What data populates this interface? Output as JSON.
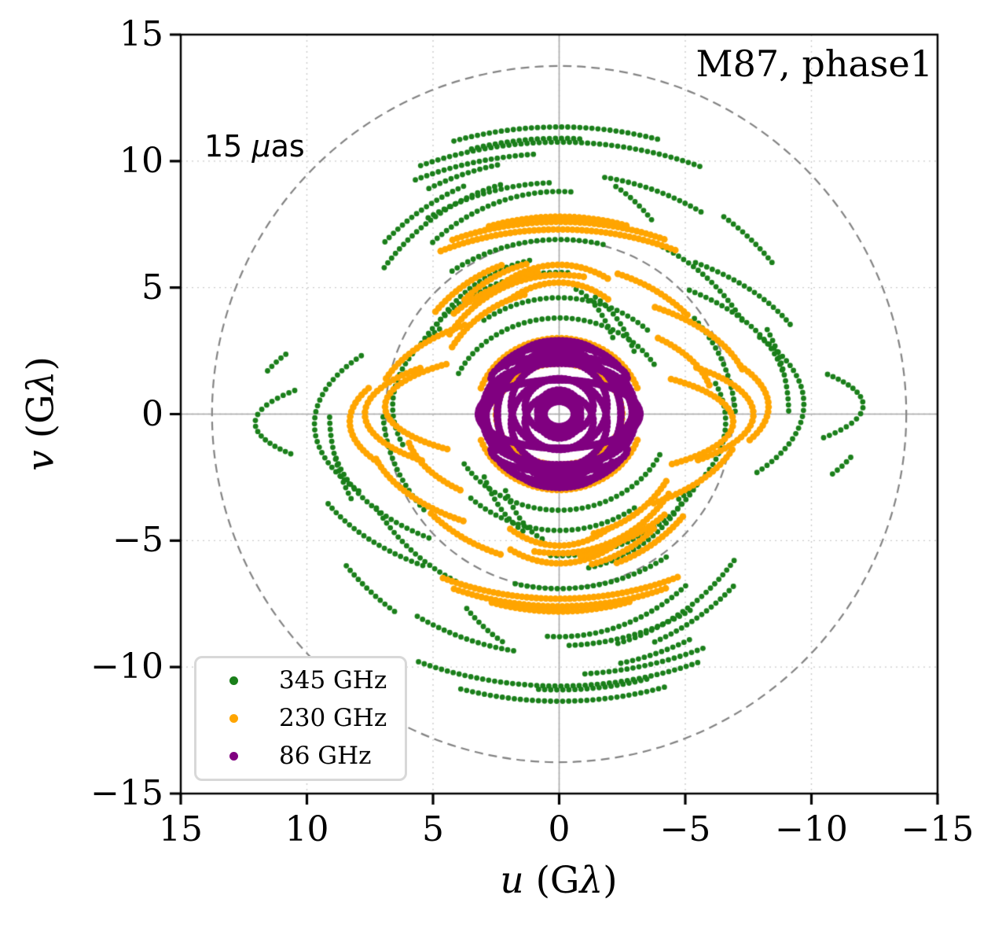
{
  "figure": {
    "title": "M87, phase1",
    "annotation": {
      "prefix": "15 ",
      "mu": "μ",
      "suffix": "as"
    },
    "xlabel": {
      "var": "u",
      "open": " (G",
      "lambda": "λ",
      "close": ")"
    },
    "ylabel": {
      "var": "v",
      "open": " (G",
      "lambda": "λ",
      "close": ")"
    }
  },
  "legend": {
    "position": "lower left",
    "items": [
      {
        "label": "345 GHz",
        "color": "#1a7f1a"
      },
      {
        "label": "230 GHz",
        "color": "#ffa500"
      },
      {
        "label": "86 GHz",
        "color": "#800080"
      }
    ]
  },
  "chart_data": {
    "type": "scatter",
    "title": "M87, phase1",
    "xlabel": "u (Gλ)",
    "ylabel": "v (Gλ)",
    "xlim": [
      15,
      -15
    ],
    "ylim": [
      -15,
      15
    ],
    "x_axis_inverted": true,
    "xticks": {
      "values": [
        15,
        10,
        5,
        0,
        -5,
        -10,
        -15
      ],
      "labels": [
        "15",
        "10",
        "5",
        "0",
        "−5",
        "−10",
        "−15"
      ]
    },
    "yticks": {
      "values": [
        15,
        10,
        5,
        0,
        -5,
        -10,
        -15
      ],
      "labels": [
        "15",
        "10",
        "5",
        "0",
        "−5",
        "−10",
        "−15"
      ]
    },
    "grid": {
      "dotted_line_values": [
        -10,
        -5,
        0,
        5,
        10
      ],
      "dotted_color": "#cbcbcb",
      "zero_lines": true,
      "zero_line_color": "#a9a9a9"
    },
    "reference_circles": {
      "label": "15 μas",
      "dashed": true,
      "color": "#838383",
      "radii_glambda": [
        13.76,
        6.88
      ]
    },
    "legend_position": "lower left",
    "track_format": "Each track [A,B,C,t1,t2] approximates a uv baseline arc: u=A·cos(t), v=B·sin(t)+C in Gλ for t in [t1,t2] degrees; the conjugate point (−u,−v) is also plotted.",
    "series": [
      {
        "name": "345 GHz",
        "frequency_ghz": 345,
        "color": "#1a7f1a",
        "marker_px": 3.4,
        "dot_spacing": 0.24,
        "tracks": [
          [
            13.5,
            11.35,
            0,
            72,
            107
          ],
          [
            13.5,
            10.75,
            0,
            66,
            115
          ],
          [
            13.0,
            10.3,
            0,
            64,
            86
          ],
          [
            11.0,
            10.1,
            0,
            62,
            78
          ],
          [
            10.4,
            9.5,
            0,
            100,
            123
          ],
          [
            12.6,
            10.9,
            0,
            74,
            94
          ],
          [
            9.8,
            9.15,
            0,
            58,
            88
          ],
          [
            8.8,
            9.4,
            0,
            38,
            75
          ],
          [
            9.6,
            9.8,
            0,
            44,
            67
          ],
          [
            7.8,
            8.6,
            0.2,
            50,
            95
          ],
          [
            8.3,
            7.6,
            0,
            118,
            152
          ],
          [
            7.0,
            6.5,
            -0.4,
            140,
            176
          ],
          [
            9.7,
            4.6,
            -0.4,
            -35,
            38
          ],
          [
            9.0,
            5.0,
            -0.8,
            -55,
            -10
          ],
          [
            10.2,
            6.0,
            -0.9,
            -58,
            -25
          ],
          [
            6.3,
            5.6,
            0,
            30,
            95
          ],
          [
            6.6,
            4.4,
            0.3,
            -20,
            45
          ],
          [
            5.2,
            4.9,
            -0.3,
            55,
            135
          ],
          [
            4.4,
            3.8,
            0,
            25,
            150
          ],
          [
            7.4,
            6.9,
            0,
            55,
            105
          ],
          [
            5.9,
            6.2,
            0,
            35,
            80
          ],
          [
            12.05,
            2.6,
            -0.35,
            -28,
            30
          ],
          [
            12.3,
            5.0,
            0,
            20,
            30
          ],
          [
            3.4,
            5.1,
            0,
            115,
            152
          ],
          [
            2.6,
            4.9,
            0.2,
            105,
            145
          ],
          [
            6.0,
            9.7,
            0,
            -68,
            -52
          ],
          [
            9.1,
            7.9,
            0,
            155,
            180
          ],
          [
            10.6,
            9.9,
            0,
            128,
            143
          ]
        ]
      },
      {
        "name": "230 GHz",
        "frequency_ghz": 230,
        "color": "#ffa500",
        "marker_px": 4.3,
        "dot_spacing": 0.19,
        "tracks": [
          [
            10.0,
            7.6,
            0,
            65,
            115
          ],
          [
            10.0,
            7.3,
            0,
            62,
            118
          ],
          [
            9.0,
            7.8,
            0,
            72,
            108
          ],
          [
            5.3,
            5.5,
            0,
            35,
            85
          ],
          [
            5.9,
            5.2,
            0.3,
            45,
            100
          ],
          [
            4.6,
            5.9,
            0,
            55,
            115
          ],
          [
            4.9,
            4.5,
            0.4,
            30,
            75
          ],
          [
            3.9,
            5.0,
            0.2,
            60,
            120
          ],
          [
            5.6,
            6.1,
            0,
            48,
            78
          ],
          [
            7.7,
            2.6,
            0,
            -45,
            45
          ],
          [
            8.3,
            3.2,
            -0.3,
            -30,
            25
          ],
          [
            6.9,
            2.2,
            0.3,
            -50,
            50
          ],
          [
            7.3,
            4.1,
            0,
            20,
            60
          ],
          [
            7.6,
            4.3,
            -0.5,
            -60,
            -15
          ],
          [
            6.4,
            6.3,
            0,
            40,
            70
          ],
          [
            6.8,
            5.9,
            0,
            110,
            140
          ],
          [
            3.3,
            3.0,
            0,
            20,
            160
          ],
          [
            2.5,
            2.0,
            0,
            0,
            180
          ],
          [
            6.1,
            3.4,
            0.4,
            130,
            170
          ],
          [
            5.0,
            5.4,
            -0.3,
            228,
            262
          ]
        ]
      },
      {
        "name": "86 GHz",
        "frequency_ghz": 86,
        "color": "#800080",
        "marker_px": 4.8,
        "dot_spacing": 0.15,
        "tracks": [
          [
            3.15,
            2.85,
            0,
            40,
            140
          ],
          [
            3.2,
            1.35,
            0,
            0,
            360
          ],
          [
            2.9,
            2.1,
            0,
            0,
            360
          ],
          [
            2.45,
            2.45,
            0,
            0,
            360
          ],
          [
            1.9,
            1.75,
            0.35,
            0,
            360
          ],
          [
            1.35,
            1.1,
            -0.3,
            0,
            360
          ],
          [
            0.85,
            0.8,
            0.15,
            0,
            360
          ],
          [
            2.6,
            1.0,
            1.0,
            0,
            180
          ],
          [
            2.7,
            0.9,
            -1.4,
            180,
            360
          ],
          [
            2.1,
            0.8,
            1.9,
            0,
            180
          ],
          [
            1.5,
            0.6,
            -2.3,
            180,
            360
          ],
          [
            0.6,
            0.5,
            0,
            0,
            360
          ],
          [
            2.95,
            1.9,
            0.3,
            150,
            210
          ],
          [
            3.05,
            2.5,
            0,
            -35,
            35
          ],
          [
            2.2,
            2.6,
            0,
            60,
            120
          ],
          [
            1.7,
            2.9,
            0,
            70,
            110
          ]
        ]
      }
    ]
  }
}
